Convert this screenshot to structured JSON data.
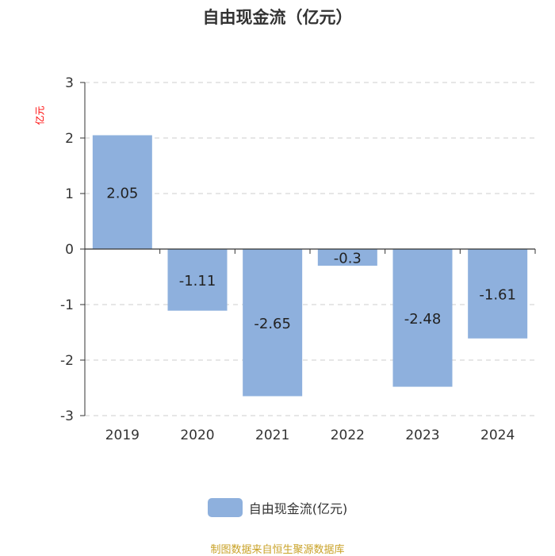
{
  "chart_data": {
    "type": "bar",
    "title": "自由现金流（亿元）",
    "ylabel": "亿元",
    "categories": [
      "2019",
      "2020",
      "2021",
      "2022",
      "2023",
      "2024"
    ],
    "series": [
      {
        "name": "自由现金流(亿元)",
        "values": [
          2.05,
          -1.11,
          -2.65,
          -0.3,
          -2.48,
          -1.61
        ]
      }
    ],
    "data_labels": [
      "2.05",
      "-1.11",
      "-2.65",
      "-0.3",
      "-2.48",
      "-1.61"
    ],
    "yticks": [
      3,
      2,
      1,
      0,
      -1,
      -2,
      -3
    ],
    "ylim": [
      -3,
      3
    ],
    "grid": "horizontal dashed",
    "legend": "bottom-center",
    "bar_color": "#8eb0dd",
    "label_color": "#ff0000"
  },
  "footer": {
    "source": "制图数据来自恒生聚源数据库",
    "source_color": "#c9a227"
  }
}
